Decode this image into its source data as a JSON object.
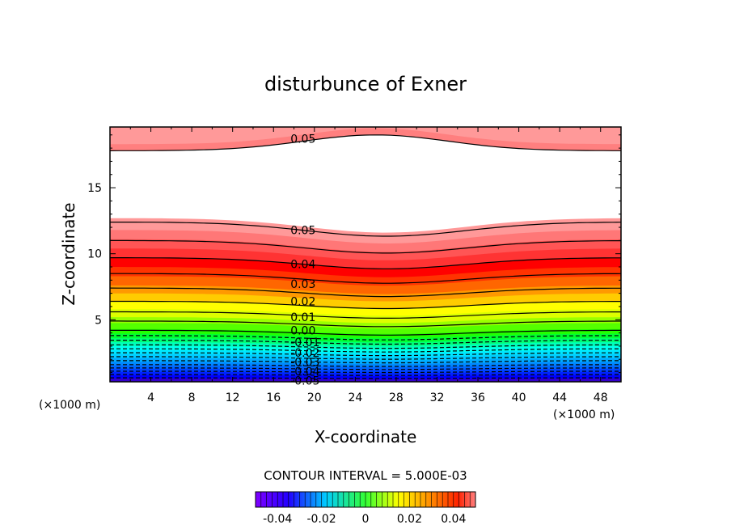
{
  "chart_data": {
    "type": "contour",
    "title": "disturbunce of Exner",
    "xlabel": "X-coordinate",
    "ylabel": "Z-coordinate",
    "x_unit_left": "(×1000 m)",
    "x_unit_right": "(×1000 m)",
    "xlim": [
      0,
      50
    ],
    "ylim": [
      0.3,
      19.6
    ],
    "x_ticks": [
      4,
      8,
      12,
      16,
      20,
      24,
      28,
      32,
      36,
      40,
      44,
      48
    ],
    "y_ticks": [
      5,
      10,
      15
    ],
    "contour_interval_label": "CONTOUR INTERVAL = 5.000E-03",
    "colorbar_ticks": [
      "-0.04",
      "-0.02",
      "0",
      "0.02",
      "0.04"
    ],
    "colorbar_range": [
      -0.05,
      0.05
    ],
    "contour_labels": [
      {
        "text": "0.05",
        "x": 17.5,
        "z": 18.7
      },
      {
        "text": "0.05",
        "x": 17.5,
        "z": 11.8
      },
      {
        "text": "0.04",
        "x": 17.5,
        "z": 9.2
      },
      {
        "text": "0.03",
        "x": 17.5,
        "z": 7.7
      },
      {
        "text": "0.02",
        "x": 17.5,
        "z": 6.4
      },
      {
        "text": "0.01",
        "x": 17.5,
        "z": 5.2
      },
      {
        "text": "0.00",
        "x": 17.5,
        "z": 4.2
      },
      {
        "text": "-0.01",
        "x": 17.5,
        "z": 3.3
      },
      {
        "text": "-0.02",
        "x": 17.5,
        "z": 2.5
      },
      {
        "text": "-0.03",
        "x": 17.5,
        "z": 1.8
      },
      {
        "text": "-0.04",
        "x": 17.5,
        "z": 1.1
      },
      {
        "text": "-0.05",
        "x": 17.5,
        "z": 0.4
      }
    ],
    "colors": {
      "top_band": "#ff7f7f",
      "white_region": "#ffffff",
      "red": "#ff0000",
      "orange": "#ff9900",
      "yellow": "#ffff00",
      "green": "#33ff00",
      "cyan": "#00ffff",
      "blue": "#0000ff",
      "purple": "#660099"
    }
  }
}
